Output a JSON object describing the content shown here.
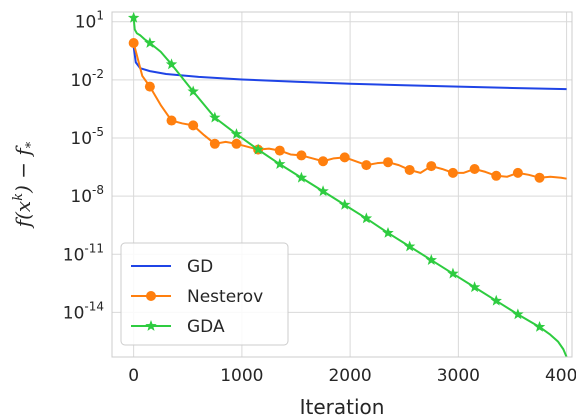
{
  "chart_data": {
    "type": "line",
    "xlabel": "Iteration",
    "ylabel": "f(x^k) − f_*",
    "y_scale": "log",
    "xlim": [
      -200,
      4050
    ],
    "ylim_exponent": [
      -16.3,
      1.5
    ],
    "x_ticks": [
      0,
      1000,
      2000,
      3000,
      4000
    ],
    "x_tick_labels": [
      "0",
      "1000",
      "2000",
      "3000",
      "4000"
    ],
    "y_ticks_exponent": [
      1,
      -2,
      -5,
      -8,
      -11,
      -14
    ],
    "y_tick_labels": [
      {
        "base": "10",
        "exp": "1"
      },
      {
        "base": "10",
        "exp": "-2"
      },
      {
        "base": "10",
        "exp": "-5"
      },
      {
        "base": "10",
        "exp": "-8"
      },
      {
        "base": "10",
        "exp": "-11"
      },
      {
        "base": "10",
        "exp": "-14"
      }
    ],
    "grid": true,
    "legend_position": "lower-left",
    "series": [
      {
        "name": "GD",
        "color": "#1f44e6",
        "marker": "none",
        "points_log10": [
          [
            0,
            -0.3
          ],
          [
            20,
            -1.1
          ],
          [
            60,
            -1.4
          ],
          [
            150,
            -1.55
          ],
          [
            300,
            -1.7
          ],
          [
            600,
            -1.85
          ],
          [
            1000,
            -1.98
          ],
          [
            1500,
            -2.1
          ],
          [
            2000,
            -2.2
          ],
          [
            2500,
            -2.28
          ],
          [
            3000,
            -2.35
          ],
          [
            3500,
            -2.42
          ],
          [
            4000,
            -2.48
          ]
        ]
      },
      {
        "name": "Nesterov",
        "color": "#ff7f0e",
        "marker": "circle",
        "points_log10": [
          [
            0,
            -0.1
          ],
          [
            80,
            -1.8
          ],
          [
            150,
            -2.35
          ],
          [
            250,
            -3.3
          ],
          [
            350,
            -4.1
          ],
          [
            450,
            -4.25
          ],
          [
            550,
            -4.35
          ],
          [
            650,
            -4.85
          ],
          [
            750,
            -5.3
          ],
          [
            850,
            -5.2
          ],
          [
            950,
            -5.3
          ],
          [
            1050,
            -5.45
          ],
          [
            1150,
            -5.6
          ],
          [
            1250,
            -5.55
          ],
          [
            1350,
            -5.65
          ],
          [
            1450,
            -5.85
          ],
          [
            1550,
            -5.9
          ],
          [
            1650,
            -6.05
          ],
          [
            1750,
            -6.2
          ],
          [
            1850,
            -6.05
          ],
          [
            1950,
            -6.0
          ],
          [
            2050,
            -6.2
          ],
          [
            2150,
            -6.4
          ],
          [
            2250,
            -6.3
          ],
          [
            2350,
            -6.25
          ],
          [
            2450,
            -6.4
          ],
          [
            2550,
            -6.65
          ],
          [
            2650,
            -6.8
          ],
          [
            2750,
            -6.45
          ],
          [
            2850,
            -6.6
          ],
          [
            2950,
            -6.8
          ],
          [
            3050,
            -6.8
          ],
          [
            3150,
            -6.6
          ],
          [
            3250,
            -6.75
          ],
          [
            3350,
            -6.95
          ],
          [
            3450,
            -7.0
          ],
          [
            3550,
            -6.8
          ],
          [
            3650,
            -6.9
          ],
          [
            3750,
            -7.05
          ],
          [
            3850,
            -7.0
          ],
          [
            3950,
            -7.05
          ],
          [
            4000,
            -7.1
          ]
        ],
        "marker_x": [
          0,
          150,
          350,
          550,
          750,
          950,
          1150,
          1350,
          1550,
          1750,
          1950,
          2150,
          2350,
          2550,
          2750,
          2950,
          3150,
          3350,
          3550,
          3750
        ]
      },
      {
        "name": "GDA",
        "color": "#2ecc40",
        "marker": "star",
        "points_log10": [
          [
            0,
            1.2
          ],
          [
            10,
            0.6
          ],
          [
            30,
            0.4
          ],
          [
            60,
            0.3
          ],
          [
            100,
            0.1
          ],
          [
            150,
            -0.1
          ],
          [
            250,
            -0.55
          ],
          [
            350,
            -1.2
          ],
          [
            550,
            -2.6
          ],
          [
            750,
            -3.95
          ],
          [
            950,
            -4.8
          ],
          [
            1150,
            -5.6
          ],
          [
            1350,
            -6.35
          ],
          [
            1550,
            -7.05
          ],
          [
            1750,
            -7.75
          ],
          [
            1950,
            -8.45
          ],
          [
            2150,
            -9.15
          ],
          [
            2350,
            -9.9
          ],
          [
            2550,
            -10.6
          ],
          [
            2750,
            -11.3
          ],
          [
            2950,
            -12.0
          ],
          [
            3150,
            -12.7
          ],
          [
            3350,
            -13.4
          ],
          [
            3550,
            -14.1
          ],
          [
            3750,
            -14.75
          ],
          [
            3850,
            -15.15
          ],
          [
            3920,
            -15.5
          ],
          [
            3970,
            -15.9
          ],
          [
            4000,
            -16.3
          ]
        ],
        "marker_x": [
          0,
          150,
          350,
          550,
          750,
          950,
          1150,
          1350,
          1550,
          1750,
          1950,
          2150,
          2350,
          2550,
          2750,
          2950,
          3150,
          3350,
          3550,
          3750
        ]
      }
    ]
  }
}
